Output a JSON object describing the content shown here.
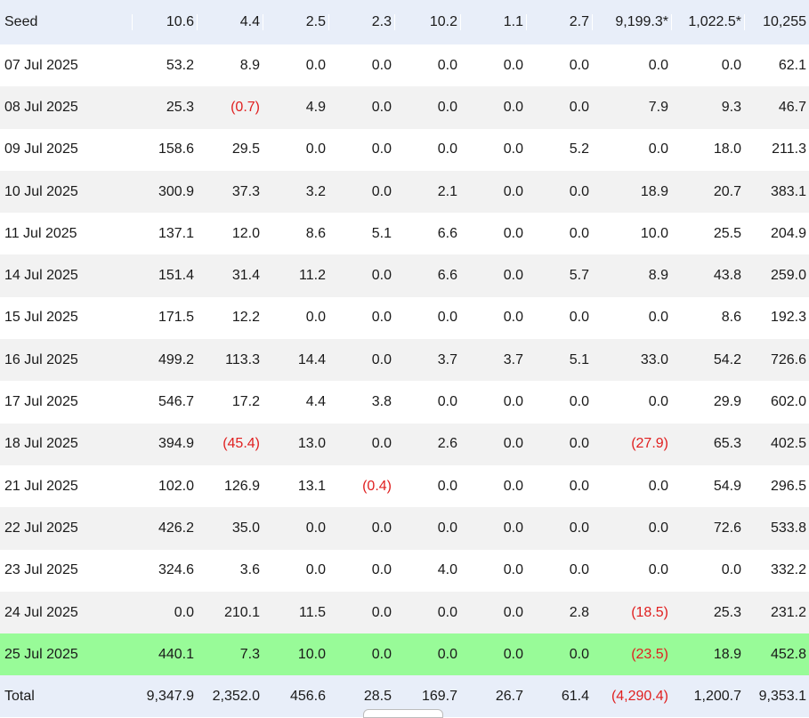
{
  "seed": {
    "label": "Seed",
    "values": [
      "10.6",
      "4.4",
      "2.5",
      "2.3",
      "10.2",
      "1.1",
      "2.7",
      "9,199.3*",
      "1,022.5*",
      "10,255"
    ]
  },
  "rows": [
    {
      "date": "07 Jul 2025",
      "values": [
        "53.2",
        "8.9",
        "0.0",
        "0.0",
        "0.0",
        "0.0",
        "0.0",
        "0.0",
        "0.0",
        "62.1"
      ]
    },
    {
      "date": "08 Jul 2025",
      "values": [
        "25.3",
        "(0.7)",
        "4.9",
        "0.0",
        "0.0",
        "0.0",
        "0.0",
        "7.9",
        "9.3",
        "46.7"
      ]
    },
    {
      "date": "09 Jul 2025",
      "values": [
        "158.6",
        "29.5",
        "0.0",
        "0.0",
        "0.0",
        "0.0",
        "5.2",
        "0.0",
        "18.0",
        "211.3"
      ]
    },
    {
      "date": "10 Jul 2025",
      "values": [
        "300.9",
        "37.3",
        "3.2",
        "0.0",
        "2.1",
        "0.0",
        "0.0",
        "18.9",
        "20.7",
        "383.1"
      ]
    },
    {
      "date": "11 Jul 2025",
      "values": [
        "137.1",
        "12.0",
        "8.6",
        "5.1",
        "6.6",
        "0.0",
        "0.0",
        "10.0",
        "25.5",
        "204.9"
      ]
    },
    {
      "date": "14 Jul 2025",
      "values": [
        "151.4",
        "31.4",
        "11.2",
        "0.0",
        "6.6",
        "0.0",
        "5.7",
        "8.9",
        "43.8",
        "259.0"
      ]
    },
    {
      "date": "15 Jul 2025",
      "values": [
        "171.5",
        "12.2",
        "0.0",
        "0.0",
        "0.0",
        "0.0",
        "0.0",
        "0.0",
        "8.6",
        "192.3"
      ]
    },
    {
      "date": "16 Jul 2025",
      "values": [
        "499.2",
        "113.3",
        "14.4",
        "0.0",
        "3.7",
        "3.7",
        "5.1",
        "33.0",
        "54.2",
        "726.6"
      ]
    },
    {
      "date": "17 Jul 2025",
      "values": [
        "546.7",
        "17.2",
        "4.4",
        "3.8",
        "0.0",
        "0.0",
        "0.0",
        "0.0",
        "29.9",
        "602.0"
      ]
    },
    {
      "date": "18 Jul 2025",
      "values": [
        "394.9",
        "(45.4)",
        "13.0",
        "0.0",
        "2.6",
        "0.0",
        "0.0",
        "(27.9)",
        "65.3",
        "402.5"
      ]
    },
    {
      "date": "21 Jul 2025",
      "values": [
        "102.0",
        "126.9",
        "13.1",
        "(0.4)",
        "0.0",
        "0.0",
        "0.0",
        "0.0",
        "54.9",
        "296.5"
      ]
    },
    {
      "date": "22 Jul 2025",
      "values": [
        "426.2",
        "35.0",
        "0.0",
        "0.0",
        "0.0",
        "0.0",
        "0.0",
        "0.0",
        "72.6",
        "533.8"
      ]
    },
    {
      "date": "23 Jul 2025",
      "values": [
        "324.6",
        "3.6",
        "0.0",
        "0.0",
        "4.0",
        "0.0",
        "0.0",
        "0.0",
        "0.0",
        "332.2"
      ]
    },
    {
      "date": "24 Jul 2025",
      "values": [
        "0.0",
        "210.1",
        "11.5",
        "0.0",
        "0.0",
        "0.0",
        "2.8",
        "(18.5)",
        "25.3",
        "231.2"
      ]
    },
    {
      "date": "25 Jul 2025",
      "values": [
        "440.1",
        "7.3",
        "10.0",
        "0.0",
        "0.0",
        "0.0",
        "0.0",
        "(23.5)",
        "18.9",
        "452.8"
      ],
      "highlight": true
    }
  ],
  "total": {
    "label": "Total",
    "values": [
      "9,347.9",
      "2,352.0",
      "456.6",
      "28.5",
      "169.7",
      "26.7",
      "61.4",
      "(4,290.4)",
      "1,200.7",
      "9,353.1"
    ]
  },
  "colors": {
    "header_bg": "#e8eef9",
    "stripe_bg": "#f2f2f2",
    "highlight_bg": "#98fb98",
    "negative": "#e02020"
  }
}
